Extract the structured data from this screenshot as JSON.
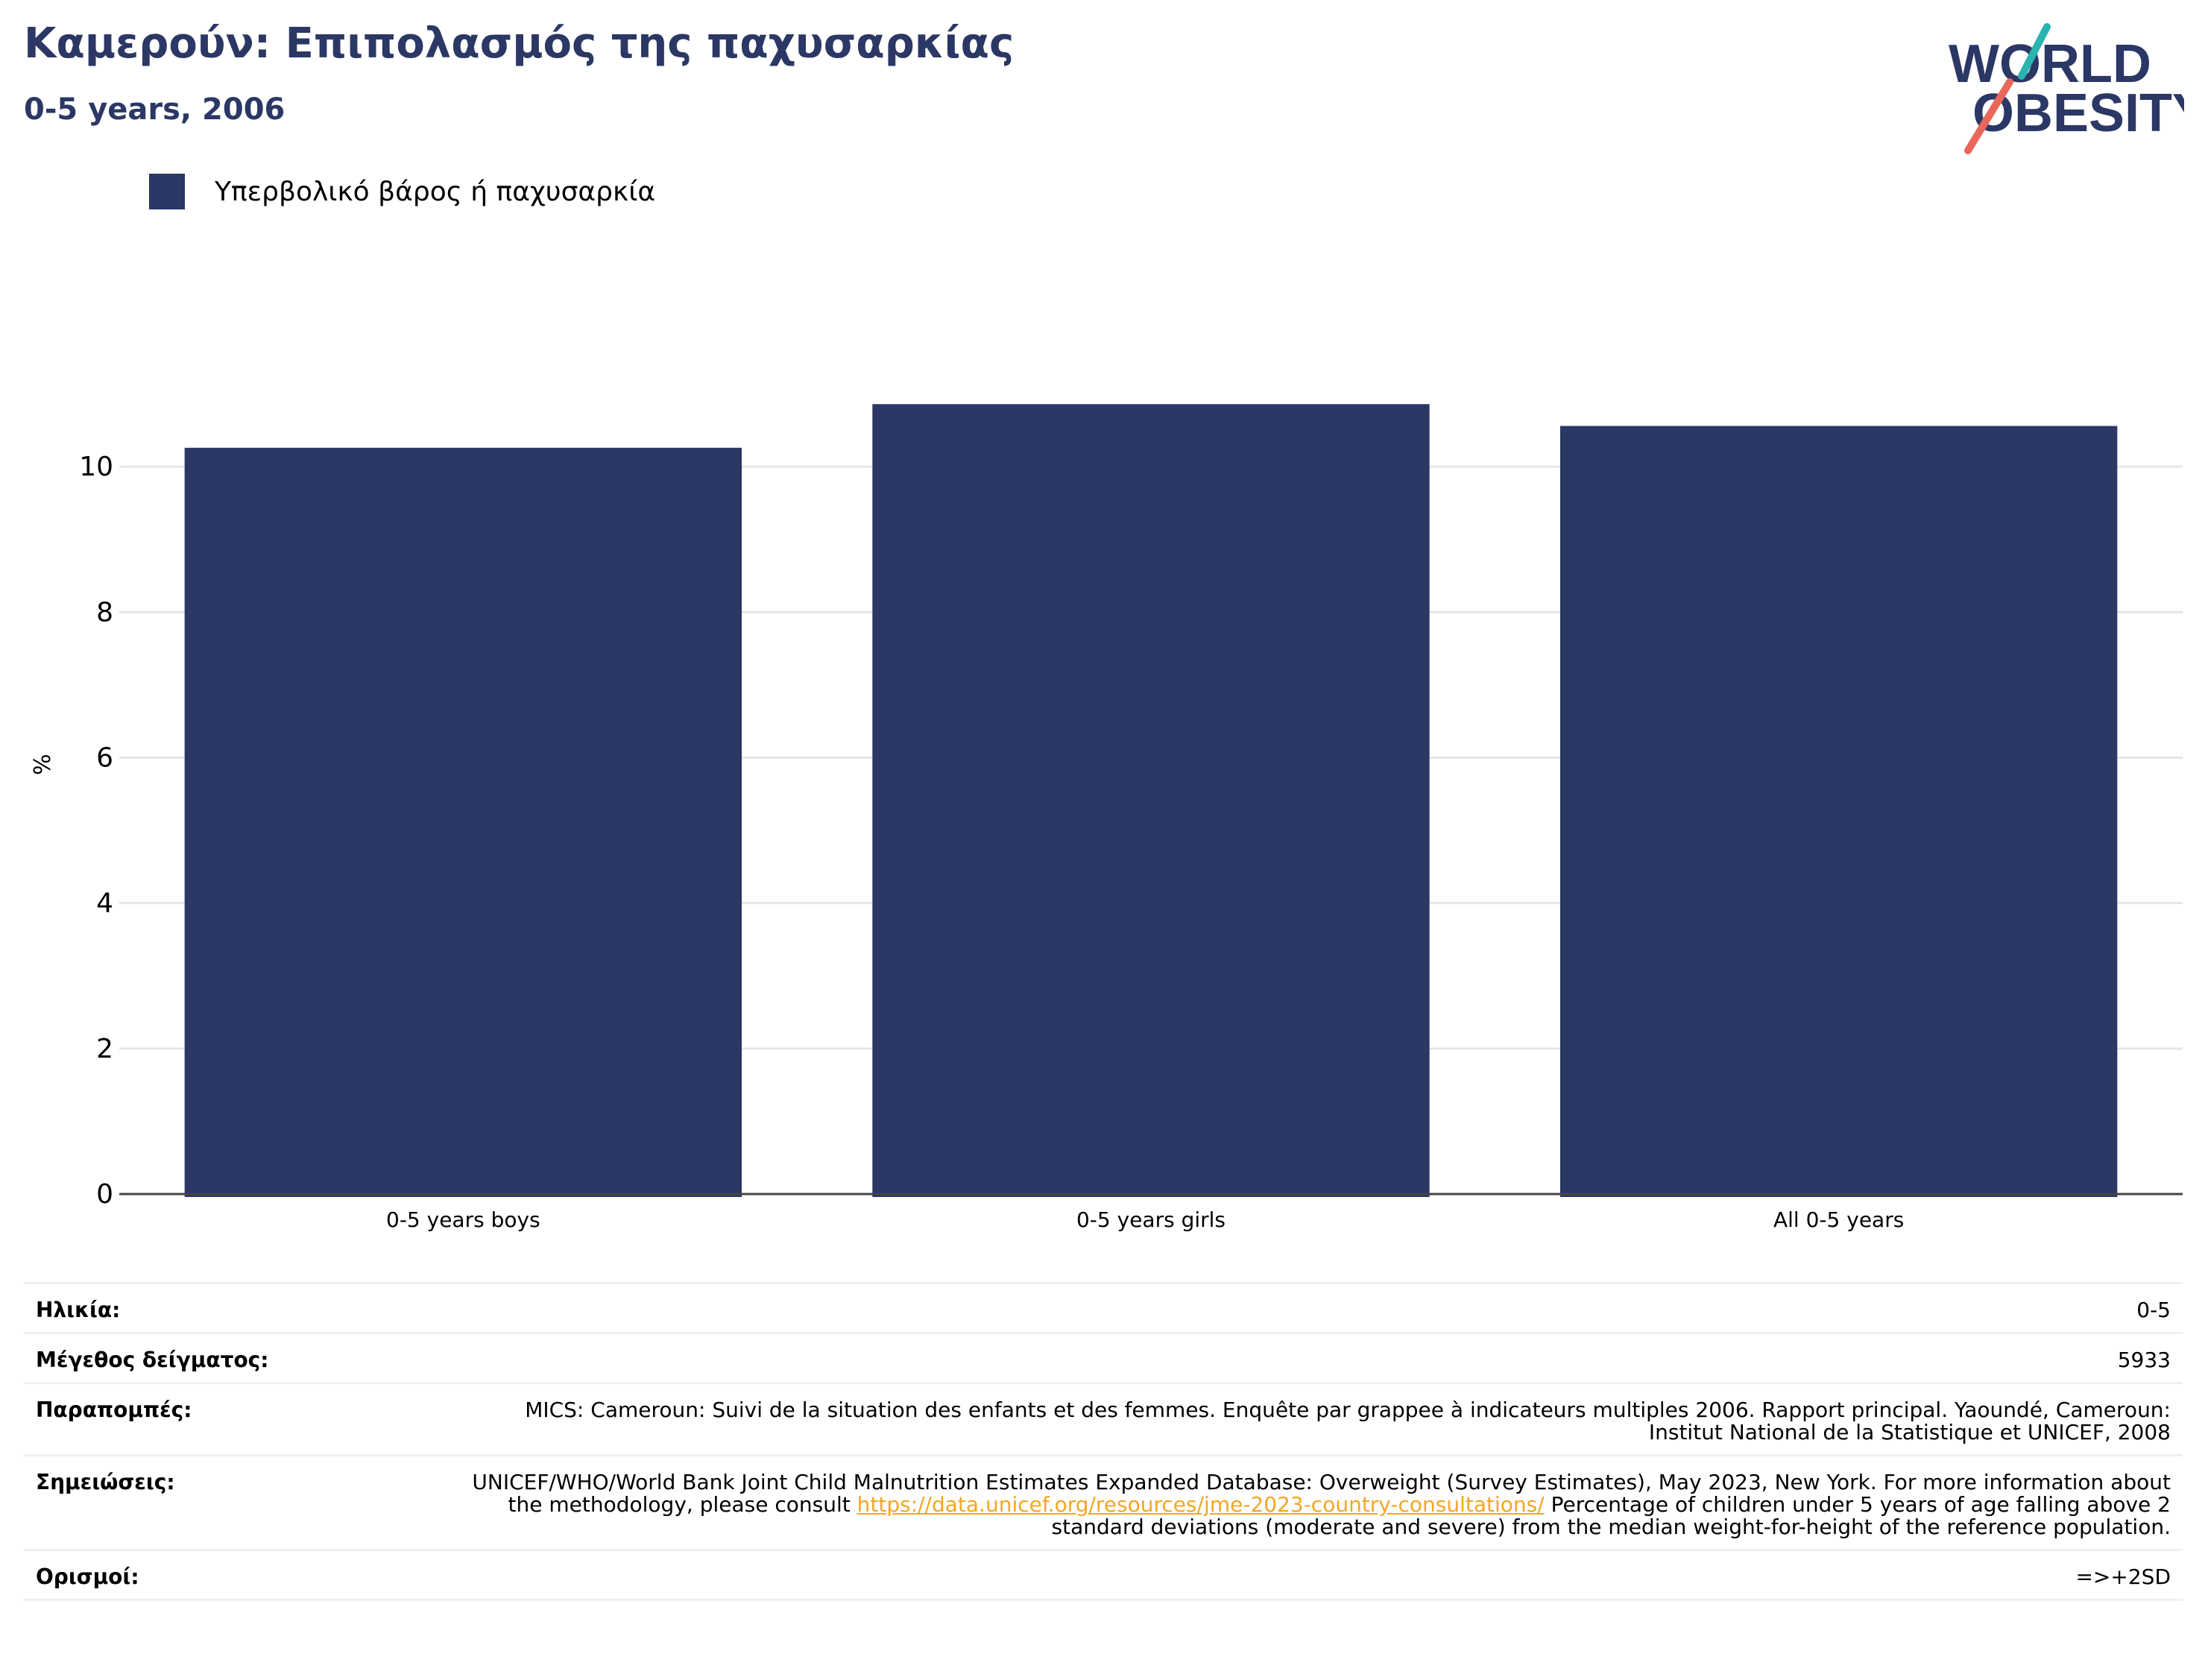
{
  "header": {
    "title": "Καμερούν: Επιπολασμός της παχυσαρκίας",
    "subtitle": "0-5 years, 2006",
    "logo_text_top": "WORLD",
    "logo_text_bottom": "OBESITY"
  },
  "legend": {
    "label": "Υπερβολικό βάρος ή παχυσαρκία"
  },
  "colors": {
    "bar": "#2b3764",
    "title": "#2b3764",
    "grid": "#e6e6e6",
    "link": "#f5a623",
    "logo_teal": "#2ab3b1",
    "logo_coral": "#e8685a"
  },
  "chart_data": {
    "type": "bar",
    "title": "Καμερούν: Επιπολασμός της παχυσαρκίας",
    "subtitle": "0-5 years, 2006",
    "ylabel": "%",
    "xlabel": "",
    "categories": [
      "0-5 years boys",
      "0-5 years girls",
      "All 0-5 years"
    ],
    "series": [
      {
        "name": "Υπερβολικό βάρος ή παχυσαρκία",
        "values": [
          10.26,
          10.86,
          10.56
        ]
      }
    ],
    "ylim": [
      0,
      11.6
    ],
    "yticks": [
      0,
      2,
      4,
      6,
      8,
      10
    ],
    "grid": true,
    "legend_position": "top-left"
  },
  "info": {
    "age_label": "Ηλικία:",
    "age_value": "0-5",
    "sample_label": "Μέγεθος δείγματος:",
    "sample_value": "5933",
    "refs_label": "Παραπομπές:",
    "refs_value": "MICS: Cameroun: Suivi de la situation des enfants et des femmes. Enquête par grappee à indicateurs multiples 2006. Rapport principal. Yaoundé, Cameroun: Institut National de la Statistique et UNICEF, 2008",
    "notes_label": "Σημειώσεις:",
    "notes_before": "UNICEF/WHO/World Bank Joint Child Malnutrition Estimates Expanded Database: Overweight (Survey Estimates), May 2023, New York. For more information about the methodology, please consult",
    "notes_link": "https://data.unicef.org/resources/jme-2023-country-consultations/",
    "notes_after": "Percentage of children under 5 years of age falling above 2 standard deviations (moderate and severe) from the median weight-for-height of the reference population.",
    "defs_label": "Ορισμοί:",
    "defs_value": "=>+2SD"
  }
}
